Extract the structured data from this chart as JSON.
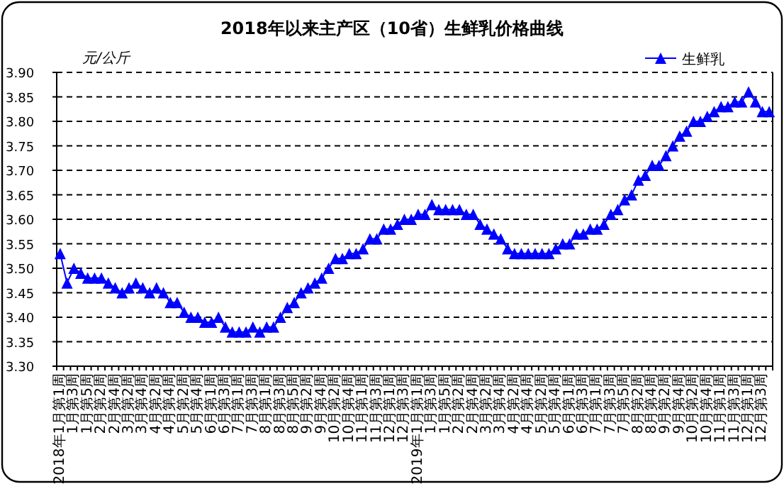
{
  "chart_data": {
    "type": "line",
    "title": "2018年以来主产区（10省）生鲜乳价格曲线",
    "ylabel": "元/公斤",
    "categories": [
      "2018年1月第1周",
      null,
      "1月第3周",
      null,
      "1月第5周",
      null,
      "2月第2周",
      null,
      "2月第4周",
      null,
      "3月第2周",
      null,
      "3月第4周",
      null,
      "4月第2周",
      null,
      "4月第4周",
      null,
      "5月第2周",
      null,
      "5月第4周",
      null,
      "6月第1周",
      null,
      "6月第3周",
      null,
      "7月第1周",
      null,
      "7月第3周",
      null,
      "8月第1周",
      null,
      "8月第3周",
      null,
      "8月第5周",
      null,
      "9月第2周",
      null,
      "9月第4周",
      null,
      "10月第2周",
      null,
      "10月第4周",
      null,
      "11月第1周",
      null,
      "11月第3周",
      null,
      "12月第1周",
      null,
      "12月第3周",
      null,
      "2019年1月第1周",
      null,
      "1月第3周",
      null,
      "1月第5周",
      null,
      "2月第2周",
      null,
      "2月第4周",
      null,
      "3月第2周",
      null,
      "3月第4周",
      null,
      "4月第2周",
      null,
      "4月第4周",
      null,
      "5月第2周",
      null,
      "5月第4周",
      null,
      "6月第1周",
      null,
      "6月第3周",
      null,
      "7月第1周",
      null,
      "7月第3周",
      null,
      "7月第5周",
      null,
      "8月第2周",
      null,
      "8月第4周",
      null,
      "9月第2周",
      null,
      "9月第4周",
      null,
      "10月第2周",
      null,
      "10月第4周",
      null,
      "11月第1周",
      null,
      "11月第3周",
      null,
      "12月第1周",
      null,
      "12月第3周",
      null
    ],
    "series": [
      {
        "name": "生鲜乳",
        "color": "#0000ff",
        "values": [
          3.53,
          3.47,
          3.5,
          3.49,
          3.48,
          3.48,
          3.48,
          3.47,
          3.46,
          3.45,
          3.46,
          3.47,
          3.46,
          3.45,
          3.46,
          3.45,
          3.43,
          3.43,
          3.41,
          3.4,
          3.4,
          3.39,
          3.39,
          3.4,
          3.38,
          3.37,
          3.37,
          3.37,
          3.38,
          3.37,
          3.38,
          3.38,
          3.4,
          3.42,
          3.43,
          3.45,
          3.46,
          3.47,
          3.48,
          3.5,
          3.52,
          3.52,
          3.53,
          3.53,
          3.54,
          3.56,
          3.56,
          3.58,
          3.58,
          3.59,
          3.6,
          3.6,
          3.61,
          3.61,
          3.63,
          3.62,
          3.62,
          3.62,
          3.62,
          3.61,
          3.61,
          3.59,
          3.58,
          3.57,
          3.56,
          3.54,
          3.53,
          3.53,
          3.53,
          3.53,
          3.53,
          3.53,
          3.54,
          3.55,
          3.55,
          3.57,
          3.57,
          3.58,
          3.58,
          3.59,
          3.61,
          3.62,
          3.64,
          3.65,
          3.68,
          3.69,
          3.71,
          3.71,
          3.73,
          3.75,
          3.77,
          3.78,
          3.8,
          3.8,
          3.81,
          3.82,
          3.83,
          3.83,
          3.84,
          3.84,
          3.86,
          3.84,
          3.82,
          3.82
        ]
      }
    ],
    "ylim": [
      3.3,
      3.9
    ],
    "yticks": [
      {
        "value": 3.3,
        "label": "3.30"
      },
      {
        "value": 3.35,
        "label": "3.35"
      },
      {
        "value": 3.4,
        "label": "3.40"
      },
      {
        "value": 3.45,
        "label": "3.45"
      },
      {
        "value": 3.5,
        "label": "3.50"
      },
      {
        "value": 3.55,
        "label": "3.55"
      },
      {
        "value": 3.6,
        "label": "3.60"
      },
      {
        "value": 3.65,
        "label": "3.65"
      },
      {
        "value": 3.7,
        "label": "3.70"
      },
      {
        "value": 3.75,
        "label": "3.75"
      },
      {
        "value": 3.8,
        "label": "3.80"
      },
      {
        "value": 3.85,
        "label": "3.85"
      },
      {
        "value": 3.9,
        "label": "3.90"
      }
    ],
    "grid": "y",
    "legend": "top right",
    "marker": "triangle",
    "line_style": "solid"
  }
}
